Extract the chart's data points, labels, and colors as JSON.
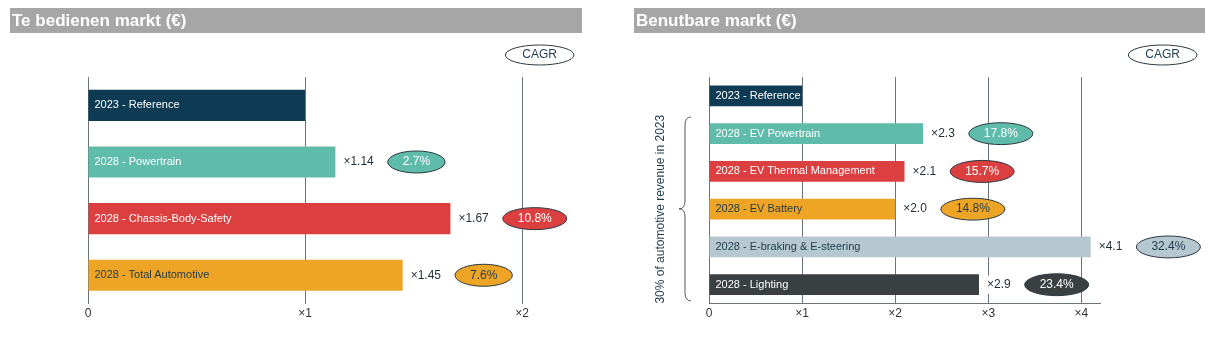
{
  "chart_data": [
    {
      "type": "bar",
      "orientation": "horizontal",
      "title": "Te bedienen markt (€)",
      "categories": [
        "2023 - Reference",
        "2028 - Powertrain",
        "2028 - Chassis-Body-Safety",
        "2028 - Total Automotive"
      ],
      "values": [
        1,
        1.14,
        1.67,
        1.45
      ],
      "colors": [
        "#0d3b54",
        "#5fbcaa",
        "#dc3f3f",
        "#eea424"
      ],
      "value_labels": [
        null,
        "×1.14",
        "×1.67",
        "×1.45"
      ],
      "xlim": [
        0,
        2
      ],
      "xticks": [
        0,
        {
          "value": 1,
          "label": "×1"
        },
        {
          "value": 2,
          "label": "×2"
        }
      ],
      "grid": "x",
      "annotations": [
        "CAGR",
        "2.7%",
        "10.8%",
        "7.6%"
      ]
    },
    {
      "type": "bar",
      "orientation": "horizontal",
      "title": "Benutbare markt (€)",
      "categories": [
        "2023 - Reference",
        "2028 - EV Powertrain",
        "2028 - EV Thermal Management",
        "2028 - EV Battery",
        "2028 - E-braking & E-steering",
        "2028 - Lighting"
      ],
      "values": [
        1,
        2.3,
        2.1,
        2.0,
        4.1,
        2.9
      ],
      "colors": [
        "#0d3b54",
        "#5fbcaa",
        "#dc3f3f",
        "#eea424",
        "#b5c7cf",
        "#3a3f42"
      ],
      "value_labels": [
        null,
        "×2.3",
        "×2.1",
        "×2.0",
        "×4.1",
        "×2.9"
      ],
      "xlim": [
        0,
        4.2
      ],
      "xticks": [
        0,
        {
          "value": 1,
          "label": "×1"
        },
        {
          "value": 2,
          "label": "×2"
        },
        {
          "value": 3,
          "label": "×3"
        },
        {
          "value": 4,
          "label": "×4"
        }
      ],
      "grid": "x",
      "annotations": [
        "CAGR",
        "30% of automotive revenue in 2023",
        "17.8%",
        "15.7%",
        "14.8%",
        "32.4%",
        "23.4%"
      ]
    }
  ]
}
